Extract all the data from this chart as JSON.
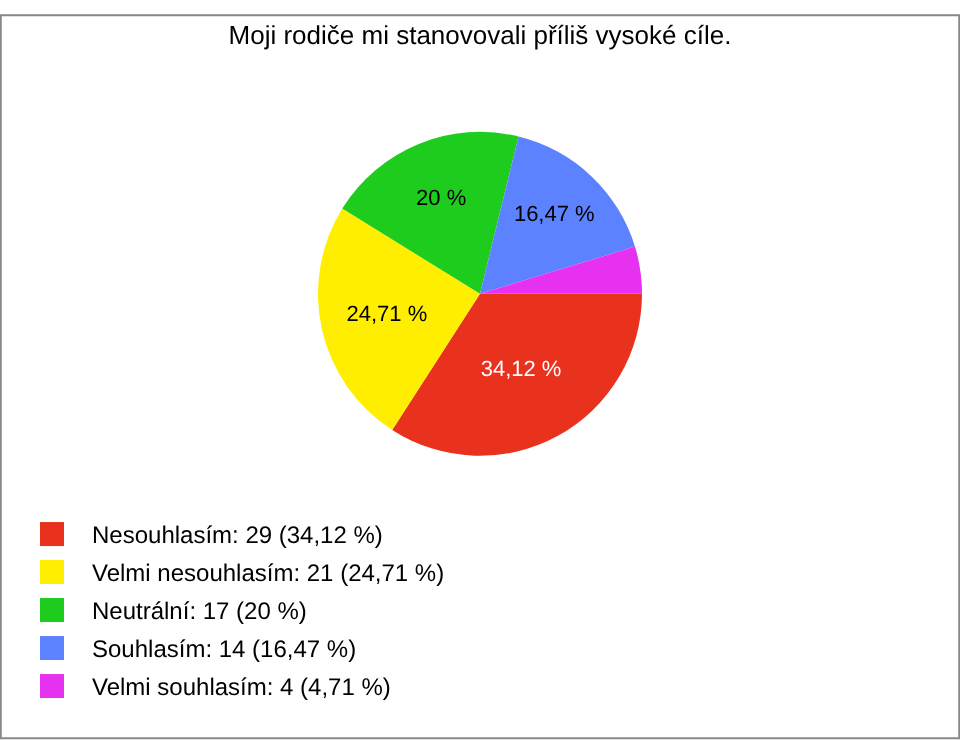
{
  "chart_data": {
    "type": "pie",
    "title": "Moji rodiče mi stanovovali příliš vysoké cíle.",
    "categories": [
      "Nesouhlasím: 29 (34,12 %)",
      "Velmi nesouhlasím: 21 (24,71 %)",
      "Neutrální: 17 (20 %)",
      "Souhlasím: 14 (16,47 %)",
      "Velmi souhlasím: 4 (4,71 %)"
    ],
    "values": [
      34.12,
      24.71,
      20,
      16.47,
      4.71
    ],
    "value_labels": [
      "34,12 %",
      "24,71 %",
      "20 %",
      "16,47 %",
      null
    ],
    "colors": [
      "#e8321e",
      "#ffee00",
      "#1ecc1e",
      "#5c82ff",
      "#e632f0"
    ],
    "legend": "bottom left"
  }
}
